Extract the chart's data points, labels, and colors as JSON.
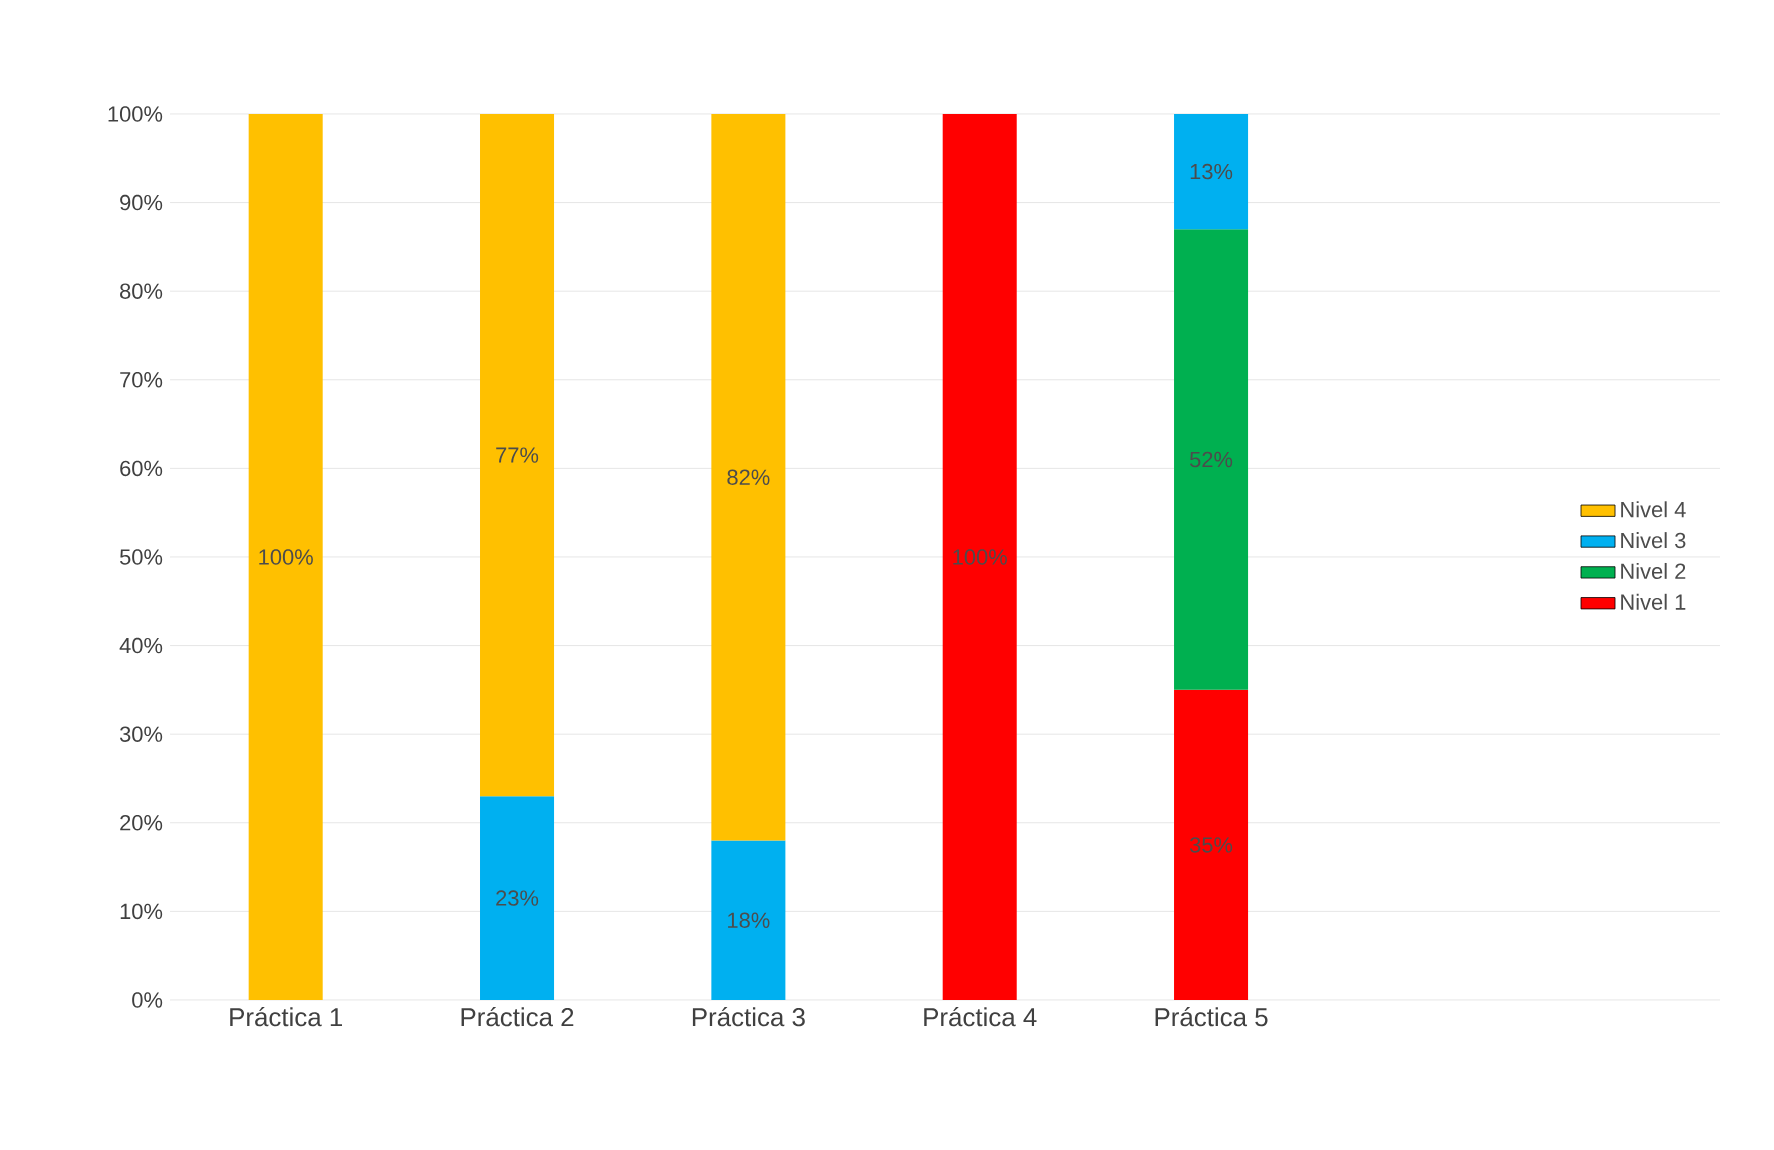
{
  "chart_data": {
    "type": "bar",
    "stacked": true,
    "categories": [
      "Práctica 1",
      "Práctica 2",
      "Práctica 3",
      "Práctica 4",
      "Práctica 5"
    ],
    "series": [
      {
        "name": "Nivel 1",
        "color": "#ff0000",
        "values": [
          null,
          null,
          null,
          100,
          35
        ],
        "value_labels": [
          null,
          null,
          null,
          "100%",
          "35%"
        ]
      },
      {
        "name": "Nivel 2",
        "color": "#00b050",
        "values": [
          null,
          null,
          null,
          null,
          52
        ],
        "value_labels": [
          null,
          null,
          null,
          null,
          "52%"
        ]
      },
      {
        "name": "Nivel 3",
        "color": "#00b0f0",
        "values": [
          null,
          23,
          18,
          null,
          13
        ],
        "value_labels": [
          null,
          "23%",
          "18%",
          null,
          "13%"
        ]
      },
      {
        "name": "Nivel 4",
        "color": "#ffc000",
        "values": [
          100,
          77,
          82,
          null,
          null
        ],
        "value_labels": [
          "100%",
          "77%",
          "82%",
          null,
          null
        ]
      }
    ],
    "ylim": [
      0,
      100
    ],
    "yticks": [
      {
        "value": 0,
        "label": "0%"
      },
      {
        "value": 10,
        "label": "10%"
      },
      {
        "value": 20,
        "label": "20%"
      },
      {
        "value": 30,
        "label": "30%"
      },
      {
        "value": 40,
        "label": "40%"
      },
      {
        "value": 50,
        "label": "50%"
      },
      {
        "value": 60,
        "label": "60%"
      },
      {
        "value": 70,
        "label": "70%"
      },
      {
        "value": 80,
        "label": "80%"
      },
      {
        "value": 90,
        "label": "90%"
      },
      {
        "value": 100,
        "label": "100%"
      }
    ],
    "grid": "y",
    "legend": "right"
  }
}
